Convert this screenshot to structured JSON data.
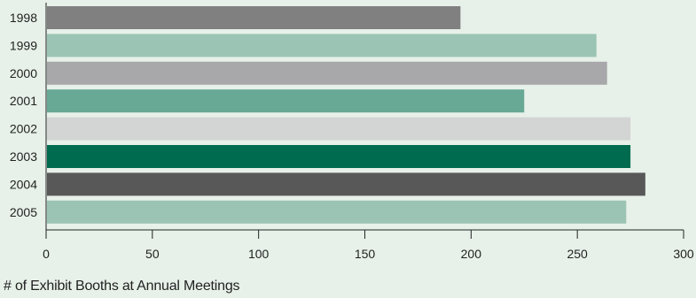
{
  "chart_data": {
    "type": "bar",
    "orientation": "horizontal",
    "categories": [
      "1998",
      "1999",
      "2000",
      "2001",
      "2002",
      "2003",
      "2004",
      "2005"
    ],
    "values": [
      195,
      259,
      264,
      225,
      275,
      275,
      282,
      273
    ],
    "colors": [
      "#808080",
      "#9bc4b4",
      "#a8a8aa",
      "#67a995",
      "#d3d4d4",
      "#006b4f",
      "#585858",
      "#9bc4b4"
    ],
    "xlabel": "# of Exhibit Booths at Annual Meetings",
    "ylabel": "",
    "xlim": [
      0,
      300
    ],
    "xticks": [
      "0",
      "50",
      "100",
      "150",
      "200",
      "250",
      "300"
    ],
    "grid": false,
    "background": "#e7f1e9"
  }
}
